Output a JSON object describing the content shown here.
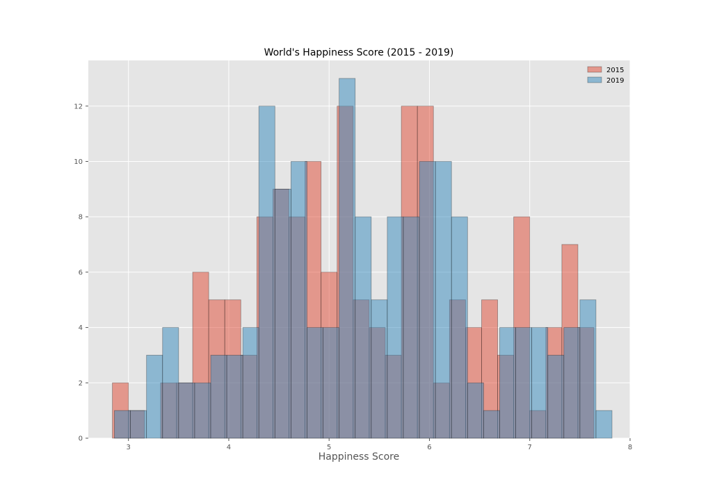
{
  "chart_data": {
    "type": "bar",
    "title": "World's Happiness Score (2015 - 2019)",
    "xlabel": "Happiness Score",
    "ylabel": "",
    "xlim": [
      2.6,
      8.0
    ],
    "ylim": [
      0,
      13.65
    ],
    "xticks": [
      3,
      4,
      5,
      6,
      7,
      8
    ],
    "yticks": [
      0,
      2,
      4,
      6,
      8,
      10,
      12
    ],
    "grid": true,
    "legend_position": "top-right",
    "series": [
      {
        "name": "2015",
        "color": "#e24a33",
        "bins": [
          {
            "x0": 2.84,
            "x1": 3.0,
            "count": 2
          },
          {
            "x0": 3.0,
            "x1": 3.16,
            "count": 1
          },
          {
            "x0": 3.16,
            "x1": 3.32,
            "count": 0
          },
          {
            "x0": 3.32,
            "x1": 3.48,
            "count": 2
          },
          {
            "x0": 3.48,
            "x1": 3.64,
            "count": 2
          },
          {
            "x0": 3.64,
            "x1": 3.8,
            "count": 6
          },
          {
            "x0": 3.8,
            "x1": 3.96,
            "count": 5
          },
          {
            "x0": 3.96,
            "x1": 4.12,
            "count": 5
          },
          {
            "x0": 4.12,
            "x1": 4.28,
            "count": 3
          },
          {
            "x0": 4.28,
            "x1": 4.44,
            "count": 8
          },
          {
            "x0": 4.44,
            "x1": 4.6,
            "count": 9
          },
          {
            "x0": 4.6,
            "x1": 4.76,
            "count": 8
          },
          {
            "x0": 4.76,
            "x1": 4.92,
            "count": 10
          },
          {
            "x0": 4.92,
            "x1": 5.08,
            "count": 6
          },
          {
            "x0": 5.08,
            "x1": 5.24,
            "count": 12
          },
          {
            "x0": 5.24,
            "x1": 5.4,
            "count": 5
          },
          {
            "x0": 5.4,
            "x1": 5.56,
            "count": 4
          },
          {
            "x0": 5.56,
            "x1": 5.72,
            "count": 3
          },
          {
            "x0": 5.72,
            "x1": 5.88,
            "count": 12
          },
          {
            "x0": 5.88,
            "x1": 6.04,
            "count": 12
          },
          {
            "x0": 6.04,
            "x1": 6.2,
            "count": 2
          },
          {
            "x0": 6.2,
            "x1": 6.36,
            "count": 5
          },
          {
            "x0": 6.36,
            "x1": 6.52,
            "count": 4
          },
          {
            "x0": 6.52,
            "x1": 6.68,
            "count": 5
          },
          {
            "x0": 6.68,
            "x1": 6.84,
            "count": 3
          },
          {
            "x0": 6.84,
            "x1": 7.0,
            "count": 8
          },
          {
            "x0": 7.0,
            "x1": 7.16,
            "count": 1
          },
          {
            "x0": 7.16,
            "x1": 7.32,
            "count": 4
          },
          {
            "x0": 7.32,
            "x1": 7.48,
            "count": 7
          },
          {
            "x0": 7.48,
            "x1": 7.64,
            "count": 4
          }
        ]
      },
      {
        "name": "2019",
        "color": "#348abd",
        "bins": [
          {
            "x0": 2.86,
            "x1": 3.02,
            "count": 1
          },
          {
            "x0": 3.02,
            "x1": 3.18,
            "count": 1
          },
          {
            "x0": 3.18,
            "x1": 3.34,
            "count": 3
          },
          {
            "x0": 3.34,
            "x1": 3.5,
            "count": 4
          },
          {
            "x0": 3.5,
            "x1": 3.66,
            "count": 2
          },
          {
            "x0": 3.66,
            "x1": 3.82,
            "count": 2
          },
          {
            "x0": 3.82,
            "x1": 3.98,
            "count": 3
          },
          {
            "x0": 3.98,
            "x1": 4.14,
            "count": 3
          },
          {
            "x0": 4.14,
            "x1": 4.3,
            "count": 4
          },
          {
            "x0": 4.3,
            "x1": 4.46,
            "count": 12
          },
          {
            "x0": 4.46,
            "x1": 4.62,
            "count": 9
          },
          {
            "x0": 4.62,
            "x1": 4.78,
            "count": 10
          },
          {
            "x0": 4.78,
            "x1": 4.94,
            "count": 4
          },
          {
            "x0": 4.94,
            "x1": 5.1,
            "count": 4
          },
          {
            "x0": 5.1,
            "x1": 5.26,
            "count": 13
          },
          {
            "x0": 5.26,
            "x1": 5.42,
            "count": 8
          },
          {
            "x0": 5.42,
            "x1": 5.58,
            "count": 5
          },
          {
            "x0": 5.58,
            "x1": 5.74,
            "count": 8
          },
          {
            "x0": 5.74,
            "x1": 5.9,
            "count": 8
          },
          {
            "x0": 5.9,
            "x1": 6.06,
            "count": 10
          },
          {
            "x0": 6.06,
            "x1": 6.22,
            "count": 10
          },
          {
            "x0": 6.22,
            "x1": 6.38,
            "count": 8
          },
          {
            "x0": 6.38,
            "x1": 6.54,
            "count": 2
          },
          {
            "x0": 6.54,
            "x1": 6.7,
            "count": 1
          },
          {
            "x0": 6.7,
            "x1": 6.86,
            "count": 4
          },
          {
            "x0": 6.86,
            "x1": 7.02,
            "count": 4
          },
          {
            "x0": 7.02,
            "x1": 7.18,
            "count": 4
          },
          {
            "x0": 7.18,
            "x1": 7.34,
            "count": 3
          },
          {
            "x0": 7.34,
            "x1": 7.5,
            "count": 4
          },
          {
            "x0": 7.5,
            "x1": 7.66,
            "count": 5
          },
          {
            "x0": 7.66,
            "x1": 7.82,
            "count": 1
          }
        ]
      }
    ]
  }
}
